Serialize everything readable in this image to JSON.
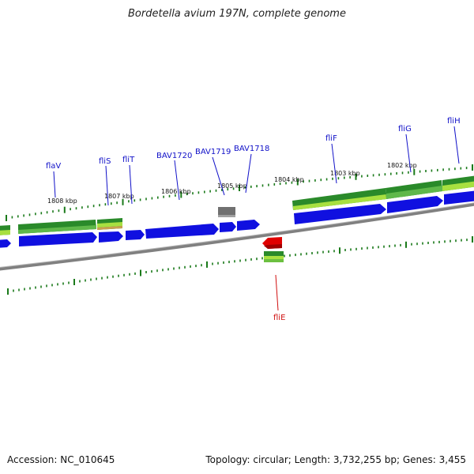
{
  "title": "Bordetella avium 197N, complete genome",
  "footer": {
    "accession": "Accession: NC_010645",
    "summary": "Topology: circular; Length: 3,732,255 bp; Genes: 3,455"
  },
  "colors": {
    "cds_forward": "#1010e0",
    "cds_reverse": "#e00000",
    "gene_dark": "#2a8a2a",
    "gene_light": "#a8e040",
    "other_feature": "#707070",
    "backbone": "#888888",
    "ticks": "#1a7a1a",
    "label_plus": "#1010c8",
    "label_minus": "#d01010"
  },
  "scale_labels": [
    "1808 kbp",
    "1807 kbp",
    "1806 kbp",
    "1805 kbp",
    "1804 kbp",
    "1803 kbp",
    "1802 kbp"
  ],
  "gene_labels": [
    {
      "name": "flaV",
      "strand": "+"
    },
    {
      "name": "fliS",
      "strand": "+"
    },
    {
      "name": "fliT",
      "strand": "+"
    },
    {
      "name": "BAV1720",
      "strand": "+"
    },
    {
      "name": "BAV1719",
      "strand": "+"
    },
    {
      "name": "BAV1718",
      "strand": "+"
    },
    {
      "name": "fliF",
      "strand": "+"
    },
    {
      "name": "fliG",
      "strand": "+"
    },
    {
      "name": "fliH",
      "strand": "+"
    },
    {
      "name": "fliE",
      "strand": "-"
    }
  ]
}
